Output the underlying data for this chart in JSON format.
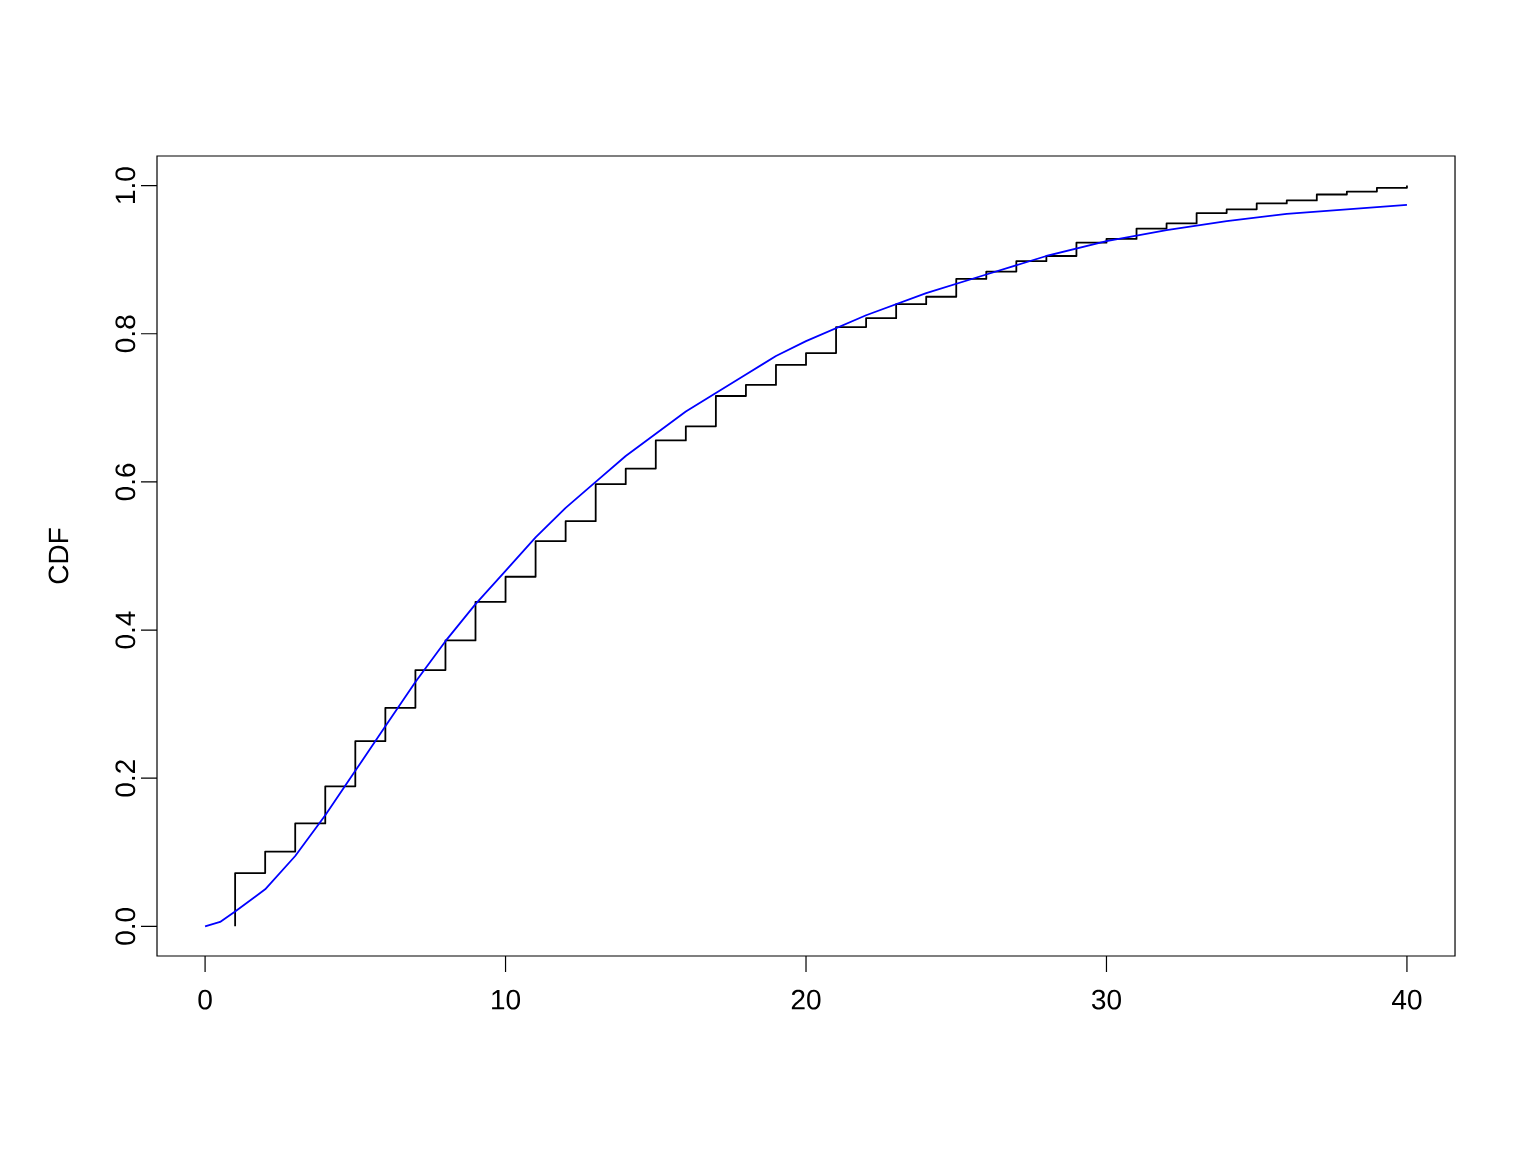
{
  "chart_data": {
    "type": "step",
    "ylabel": "CDF",
    "xlim": [
      -1.6,
      41.6
    ],
    "ylim": [
      -0.04,
      1.04
    ],
    "xticks": [
      0,
      10,
      20,
      30,
      40
    ],
    "yticks": [
      {
        "value": 0,
        "label": "0.0"
      },
      {
        "value": 0.2,
        "label": "0.2"
      },
      {
        "value": 0.4,
        "label": "0.4"
      },
      {
        "value": 0.6,
        "label": "0.6"
      },
      {
        "value": 0.8,
        "label": "0.8"
      },
      {
        "value": 1,
        "label": "1.0"
      }
    ],
    "grid": false,
    "series": [
      {
        "color": "#000000",
        "x": [
          1,
          1,
          2,
          3,
          4,
          5,
          6,
          7,
          8,
          9,
          10,
          11,
          12,
          13,
          14,
          15,
          16,
          17,
          18,
          19,
          20,
          21,
          22,
          23,
          24,
          25,
          26,
          27,
          28,
          29,
          30,
          31,
          32,
          33,
          34,
          35,
          36,
          37,
          38,
          39,
          40
        ],
        "values": [
          0,
          0.072,
          0.101,
          0.139,
          0.189,
          0.25,
          0.295,
          0.346,
          0.386,
          0.438,
          0.472,
          0.52,
          0.547,
          0.597,
          0.618,
          0.656,
          0.675,
          0.716,
          0.731,
          0.758,
          0.774,
          0.809,
          0.821,
          0.84,
          0.85,
          0.874,
          0.884,
          0.898,
          0.905,
          0.923,
          0.928,
          0.942,
          0.949,
          0.963,
          0.968,
          0.976,
          0.98,
          0.988,
          0.992,
          0.997,
          1.0
        ]
      },
      {
        "type": "line",
        "color": "#0000ff",
        "x": [
          0,
          0.5,
          1,
          2,
          3,
          4,
          5,
          6,
          7,
          8,
          9,
          10,
          11,
          12,
          13,
          14,
          15,
          16,
          17,
          18,
          19,
          20,
          22,
          24,
          26,
          28,
          30,
          32,
          34,
          36,
          38,
          40
        ],
        "values": [
          0,
          0.006,
          0.02,
          0.05,
          0.095,
          0.15,
          0.21,
          0.27,
          0.33,
          0.385,
          0.435,
          0.48,
          0.525,
          0.565,
          0.6,
          0.635,
          0.665,
          0.695,
          0.72,
          0.745,
          0.77,
          0.79,
          0.825,
          0.855,
          0.88,
          0.905,
          0.925,
          0.94,
          0.952,
          0.962,
          0.968,
          0.974
        ]
      }
    ]
  }
}
